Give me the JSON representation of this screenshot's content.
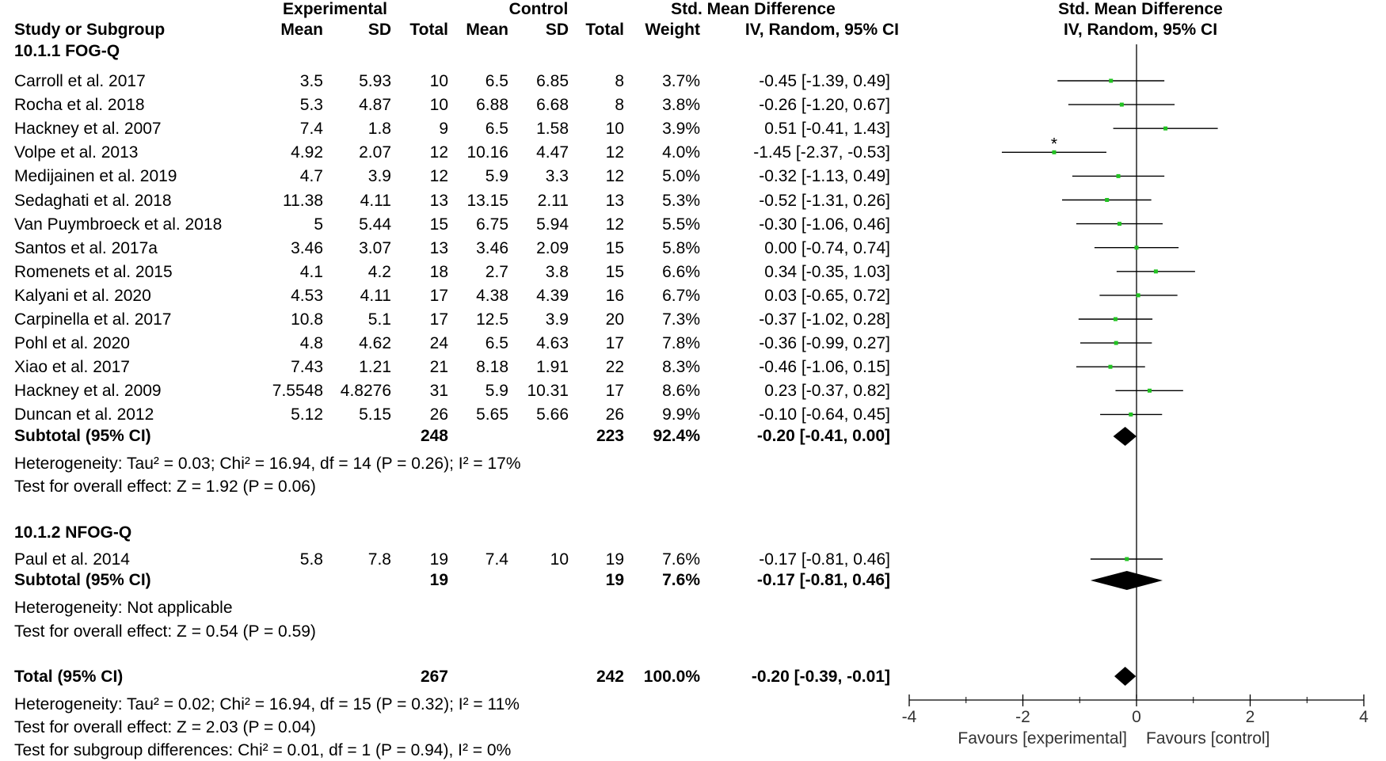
{
  "header": {
    "group_experimental": "Experimental",
    "group_control": "Control",
    "col_smd_top": "Std. Mean Difference",
    "col_smd_sub": "IV, Random, 95% CI",
    "plot_title_top": "Std. Mean Difference",
    "plot_title_sub": "IV, Random, 95% CI",
    "col_study": "Study or Subgroup",
    "col_mean_e": "Mean",
    "col_sd_e": "SD",
    "col_total_e": "Total",
    "col_mean_c": "Mean",
    "col_sd_c": "SD",
    "col_total_c": "Total",
    "col_weight": "Weight"
  },
  "groups": [
    {
      "title": "10.1.1 FOG-Q",
      "studies": [
        {
          "name": "Carroll et al. 2017",
          "mean_e": "3.5",
          "sd_e": "5.93",
          "n_e": "10",
          "mean_c": "6.5",
          "sd_c": "6.85",
          "n_c": "8",
          "weight": "3.7%",
          "ci": "-0.45 [-1.39, 0.49]",
          "est": -0.45,
          "lo": -1.39,
          "hi": 0.49,
          "mark": ""
        },
        {
          "name": "Rocha et al. 2018",
          "mean_e": "5.3",
          "sd_e": "4.87",
          "n_e": "10",
          "mean_c": "6.88",
          "sd_c": "6.68",
          "n_c": "8",
          "weight": "3.8%",
          "ci": "-0.26 [-1.20, 0.67]",
          "est": -0.26,
          "lo": -1.2,
          "hi": 0.67,
          "mark": ""
        },
        {
          "name": "Hackney et al. 2007",
          "mean_e": "7.4",
          "sd_e": "1.8",
          "n_e": "9",
          "mean_c": "6.5",
          "sd_c": "1.58",
          "n_c": "10",
          "weight": "3.9%",
          "ci": "0.51 [-0.41, 1.43]",
          "est": 0.51,
          "lo": -0.41,
          "hi": 1.43,
          "mark": ""
        },
        {
          "name": "Volpe et al. 2013",
          "mean_e": "4.92",
          "sd_e": "2.07",
          "n_e": "12",
          "mean_c": "10.16",
          "sd_c": "4.47",
          "n_c": "12",
          "weight": "4.0%",
          "ci": "-1.45 [-2.37, -0.53]",
          "est": -1.45,
          "lo": -2.37,
          "hi": -0.53,
          "mark": "*"
        },
        {
          "name": "Medijainen et al. 2019",
          "mean_e": "4.7",
          "sd_e": "3.9",
          "n_e": "12",
          "mean_c": "5.9",
          "sd_c": "3.3",
          "n_c": "12",
          "weight": "5.0%",
          "ci": "-0.32 [-1.13, 0.49]",
          "est": -0.32,
          "lo": -1.13,
          "hi": 0.49,
          "mark": ""
        },
        {
          "name": "Sedaghati et al. 2018",
          "mean_e": "11.38",
          "sd_e": "4.11",
          "n_e": "13",
          "mean_c": "13.15",
          "sd_c": "2.11",
          "n_c": "13",
          "weight": "5.3%",
          "ci": "-0.52 [-1.31, 0.26]",
          "est": -0.52,
          "lo": -1.31,
          "hi": 0.26,
          "mark": ""
        },
        {
          "name": "Van Puymbroeck et al. 2018",
          "mean_e": "5",
          "sd_e": "5.44",
          "n_e": "15",
          "mean_c": "6.75",
          "sd_c": "5.94",
          "n_c": "12",
          "weight": "5.5%",
          "ci": "-0.30 [-1.06, 0.46]",
          "est": -0.3,
          "lo": -1.06,
          "hi": 0.46,
          "mark": ""
        },
        {
          "name": "Santos et al. 2017a",
          "mean_e": "3.46",
          "sd_e": "3.07",
          "n_e": "13",
          "mean_c": "3.46",
          "sd_c": "2.09",
          "n_c": "15",
          "weight": "5.8%",
          "ci": "0.00 [-0.74, 0.74]",
          "est": 0.0,
          "lo": -0.74,
          "hi": 0.74,
          "mark": ""
        },
        {
          "name": "Romenets et al. 2015",
          "mean_e": "4.1",
          "sd_e": "4.2",
          "n_e": "18",
          "mean_c": "2.7",
          "sd_c": "3.8",
          "n_c": "15",
          "weight": "6.6%",
          "ci": "0.34 [-0.35, 1.03]",
          "est": 0.34,
          "lo": -0.35,
          "hi": 1.03,
          "mark": ""
        },
        {
          "name": "Kalyani et al. 2020",
          "mean_e": "4.53",
          "sd_e": "4.11",
          "n_e": "17",
          "mean_c": "4.38",
          "sd_c": "4.39",
          "n_c": "16",
          "weight": "6.7%",
          "ci": "0.03 [-0.65, 0.72]",
          "est": 0.03,
          "lo": -0.65,
          "hi": 0.72,
          "mark": ""
        },
        {
          "name": "Carpinella et al. 2017",
          "mean_e": "10.8",
          "sd_e": "5.1",
          "n_e": "17",
          "mean_c": "12.5",
          "sd_c": "3.9",
          "n_c": "20",
          "weight": "7.3%",
          "ci": "-0.37 [-1.02, 0.28]",
          "est": -0.37,
          "lo": -1.02,
          "hi": 0.28,
          "mark": ""
        },
        {
          "name": "Pohl et al. 2020",
          "mean_e": "4.8",
          "sd_e": "4.62",
          "n_e": "24",
          "mean_c": "6.5",
          "sd_c": "4.63",
          "n_c": "17",
          "weight": "7.8%",
          "ci": "-0.36 [-0.99, 0.27]",
          "est": -0.36,
          "lo": -0.99,
          "hi": 0.27,
          "mark": ""
        },
        {
          "name": "Xiao et al. 2017",
          "mean_e": "7.43",
          "sd_e": "1.21",
          "n_e": "21",
          "mean_c": "8.18",
          "sd_c": "1.91",
          "n_c": "22",
          "weight": "8.3%",
          "ci": "-0.46 [-1.06, 0.15]",
          "est": -0.46,
          "lo": -1.06,
          "hi": 0.15,
          "mark": ""
        },
        {
          "name": "Hackney et al. 2009",
          "mean_e": "7.5548",
          "sd_e": "4.8276",
          "n_e": "31",
          "mean_c": "5.9",
          "sd_c": "10.31",
          "n_c": "17",
          "weight": "8.6%",
          "ci": "0.23 [-0.37, 0.82]",
          "est": 0.23,
          "lo": -0.37,
          "hi": 0.82,
          "mark": ""
        },
        {
          "name": "Duncan et al. 2012",
          "mean_e": "5.12",
          "sd_e": "5.15",
          "n_e": "26",
          "mean_c": "5.65",
          "sd_c": "5.66",
          "n_c": "26",
          "weight": "9.9%",
          "ci": "-0.10 [-0.64, 0.45]",
          "est": -0.1,
          "lo": -0.64,
          "hi": 0.45,
          "mark": ""
        }
      ],
      "subtotal": {
        "label": "Subtotal (95% CI)",
        "n_e": "248",
        "n_c": "223",
        "weight": "92.4%",
        "ci": "-0.20 [-0.41, 0.00]",
        "est": -0.2,
        "lo": -0.41,
        "hi": 0.0
      },
      "heterogeneity": "Heterogeneity: Tau² = 0.03; Chi² = 16.94, df = 14 (P = 0.26); I² = 17%",
      "overall": "Test for overall effect: Z = 1.92 (P = 0.06)"
    },
    {
      "title": "10.1.2 NFOG-Q",
      "studies": [
        {
          "name": "Paul et al. 2014",
          "mean_e": "5.8",
          "sd_e": "7.8",
          "n_e": "19",
          "mean_c": "7.4",
          "sd_c": "10",
          "n_c": "19",
          "weight": "7.6%",
          "ci": "-0.17 [-0.81, 0.46]",
          "est": -0.17,
          "lo": -0.81,
          "hi": 0.46,
          "mark": ""
        }
      ],
      "subtotal": {
        "label": "Subtotal (95% CI)",
        "n_e": "19",
        "n_c": "19",
        "weight": "7.6%",
        "ci": "-0.17 [-0.81, 0.46]",
        "est": -0.17,
        "lo": -0.81,
        "hi": 0.46
      },
      "heterogeneity": "Heterogeneity: Not applicable",
      "overall": "Test for overall effect: Z = 0.54 (P = 0.59)"
    }
  ],
  "total": {
    "label": "Total (95% CI)",
    "n_e": "267",
    "n_c": "242",
    "weight": "100.0%",
    "ci": "-0.20 [-0.39, -0.01]",
    "est": -0.2,
    "lo": -0.39,
    "hi": -0.01,
    "heterogeneity": "Heterogeneity: Tau² = 0.02; Chi² = 16.94, df = 15 (P = 0.32); I² = 11%",
    "overall": "Test for overall effect: Z = 2.03 (P = 0.04)",
    "subgroup_diff": "Test for subgroup differences: Chi² = 0.01, df = 1 (P = 0.94), I² = 0%"
  },
  "chart_data": {
    "type": "forest",
    "title": "Std. Mean Difference IV, Random, 95% CI",
    "xlim": [
      -4,
      4
    ],
    "ticks": [
      -4,
      -2,
      0,
      2,
      4
    ],
    "tick_labels": [
      "-4",
      "-2",
      "0",
      "2",
      "4"
    ],
    "xlabel_left": "Favours [experimental]",
    "xlabel_right": "Favours [control]",
    "colors": {
      "marker": "#22c322",
      "line": "#000000",
      "diamond": "#000000"
    }
  }
}
